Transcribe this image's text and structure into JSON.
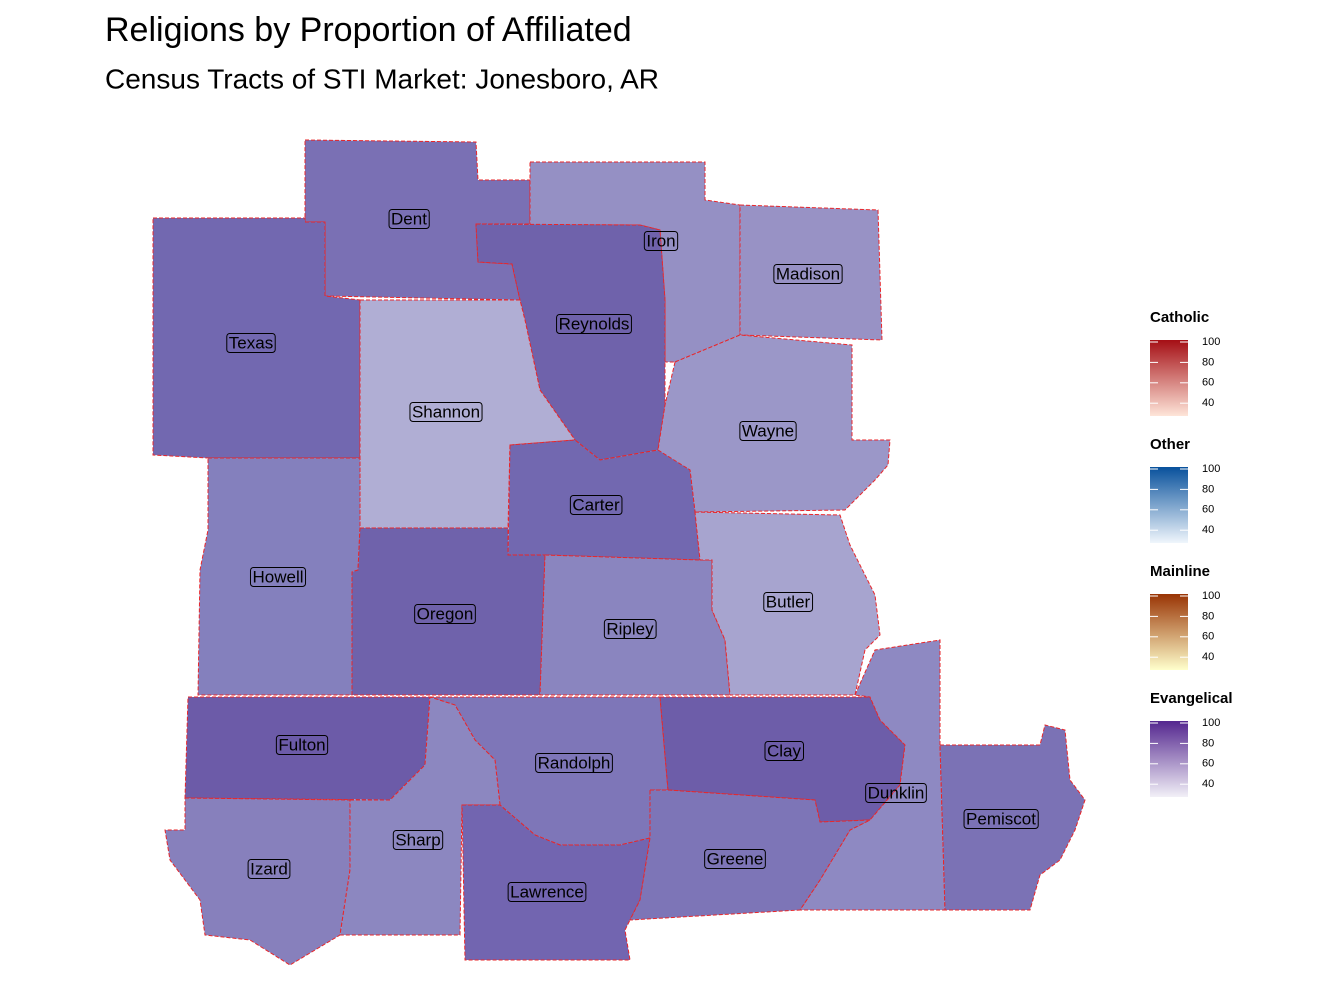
{
  "title": "Religions by Proportion of Affiliated",
  "subtitle": "Census Tracts of STI Market: Jonesboro, AR",
  "counties": [
    {
      "name": "Dent",
      "color": "#7a70b4"
    },
    {
      "name": "Iron",
      "color": "#9590c4"
    },
    {
      "name": "Madison",
      "color": "#9892c5"
    },
    {
      "name": "Reynolds",
      "color": "#6f62ab"
    },
    {
      "name": "Texas",
      "color": "#7268b0"
    },
    {
      "name": "Shannon",
      "color": "#b0aed4"
    },
    {
      "name": "Wayne",
      "color": "#9b97c8"
    },
    {
      "name": "Carter",
      "color": "#7268b0"
    },
    {
      "name": "Howell",
      "color": "#8480bd"
    },
    {
      "name": "Oregon",
      "color": "#6f62ab"
    },
    {
      "name": "Ripley",
      "color": "#8a85bf"
    },
    {
      "name": "Butler",
      "color": "#a7a4cf"
    },
    {
      "name": "Fulton",
      "color": "#6c5ba8"
    },
    {
      "name": "Randolph",
      "color": "#7e76b8"
    },
    {
      "name": "Clay",
      "color": "#6d5da9"
    },
    {
      "name": "Dunklin",
      "color": "#8e89c2"
    },
    {
      "name": "Pemiscot",
      "color": "#7b72b5"
    },
    {
      "name": "Izard",
      "color": "#8780bc"
    },
    {
      "name": "Sharp",
      "color": "#8c87c0"
    },
    {
      "name": "Lawrence",
      "color": "#7265b0"
    },
    {
      "name": "Greene",
      "color": "#7d75b7"
    }
  ],
  "legends": [
    {
      "title": "Catholic",
      "ticks": [
        100,
        80,
        60,
        40
      ],
      "colors": [
        "#fee5d9",
        "#a50f15"
      ]
    },
    {
      "title": "Other",
      "ticks": [
        100,
        80,
        60,
        40
      ],
      "colors": [
        "#f0f6fc",
        "#08519c"
      ]
    },
    {
      "title": "Mainline",
      "ticks": [
        100,
        80,
        60,
        40
      ],
      "colors": [
        "#ffffcc",
        "#993404"
      ]
    },
    {
      "title": "Evangelical",
      "ticks": [
        100,
        80,
        60,
        40
      ],
      "colors": [
        "#f2f0f7",
        "#54278f"
      ]
    }
  ]
}
